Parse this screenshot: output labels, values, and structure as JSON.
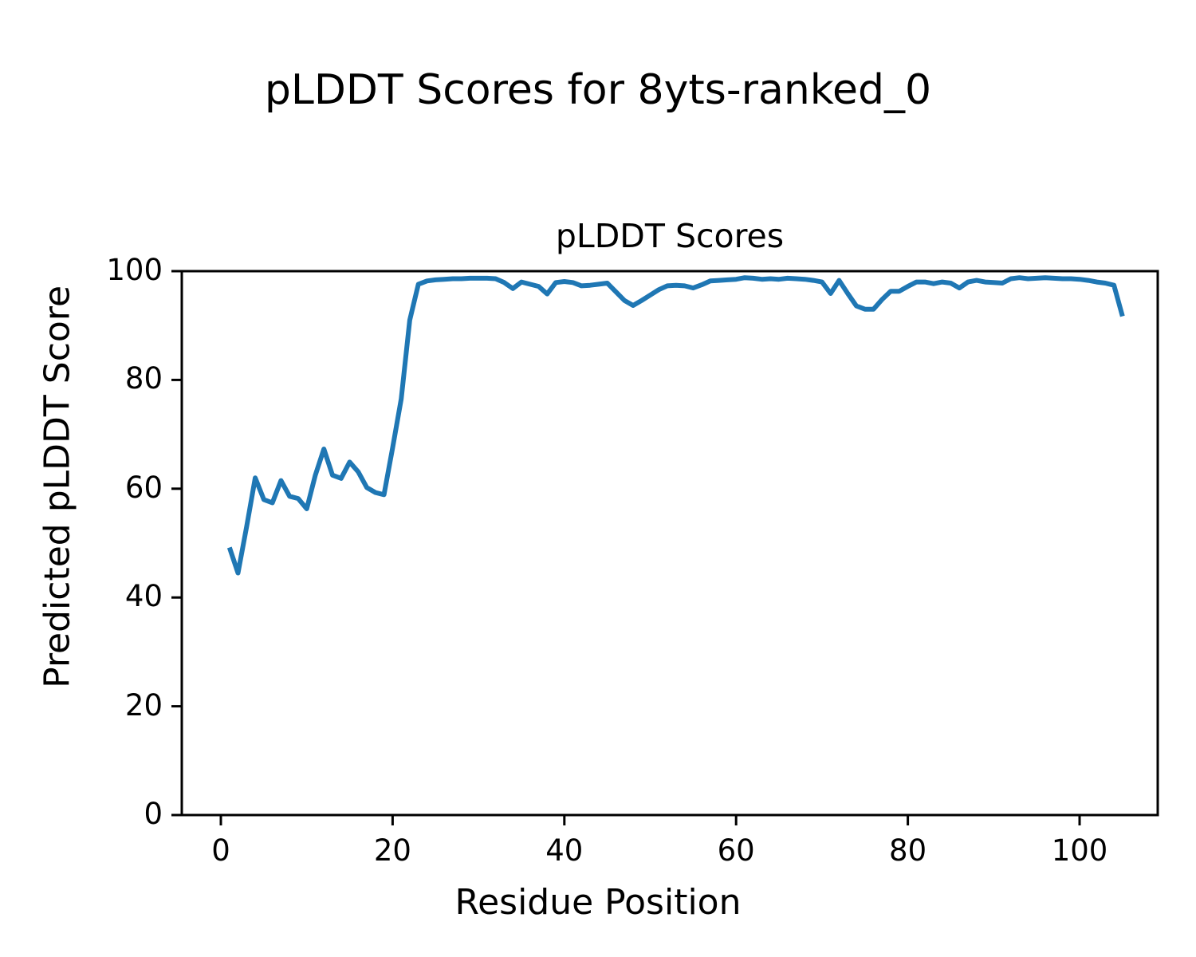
{
  "figure": {
    "suptitle": "pLDDT Scores for 8yts-ranked_0"
  },
  "chart_data": {
    "type": "line",
    "title": "pLDDT Scores",
    "suptitle": "pLDDT Scores for 8yts-ranked_0",
    "xlabel": "Residue Position",
    "ylabel": "Predicted pLDDT Score",
    "grid": false,
    "legend": null,
    "background_color": "#ffffff",
    "text_color": "#000000",
    "spine_color": "#000000",
    "xlim": [
      -4.55,
      109.1
    ],
    "ylim": [
      0,
      100
    ],
    "xtick_values": [
      0,
      20,
      40,
      60,
      80,
      100
    ],
    "xtick_labels": [
      "0",
      "20",
      "40",
      "60",
      "80",
      "100"
    ],
    "ytick_values": [
      0,
      20,
      40,
      60,
      80,
      100
    ],
    "ytick_labels": [
      "0",
      "20",
      "40",
      "60",
      "80",
      "100"
    ],
    "x": [
      1,
      2,
      3,
      4,
      5,
      6,
      7,
      8,
      9,
      10,
      11,
      12,
      13,
      14,
      15,
      16,
      17,
      18,
      19,
      20,
      21,
      22,
      23,
      24,
      25,
      26,
      27,
      28,
      29,
      30,
      31,
      32,
      33,
      34,
      35,
      36,
      37,
      38,
      39,
      40,
      41,
      42,
      43,
      44,
      45,
      46,
      47,
      48,
      49,
      50,
      51,
      52,
      53,
      54,
      55,
      56,
      57,
      58,
      59,
      60,
      61,
      62,
      63,
      64,
      65,
      66,
      67,
      68,
      69,
      70,
      71,
      72,
      73,
      74,
      75,
      76,
      77,
      78,
      79,
      80,
      81,
      82,
      83,
      84,
      85,
      86,
      87,
      88,
      89,
      90,
      91,
      92,
      93,
      94,
      95,
      96,
      97,
      98,
      99,
      100,
      101,
      102,
      103,
      104,
      105
    ],
    "series": [
      {
        "name": "pLDDT",
        "color": "#1f77b4",
        "line_width": 6,
        "values": [
          49.2,
          44.5,
          53,
          62,
          58,
          57.4,
          61.5,
          58.6,
          58.2,
          56.3,
          62.5,
          67.3,
          62.5,
          61.9,
          64.9,
          63.1,
          60.2,
          59.3,
          58.9,
          67.5,
          76.5,
          91,
          97.6,
          98.2,
          98.4,
          98.5,
          98.6,
          98.6,
          98.7,
          98.7,
          98.7,
          98.6,
          97.9,
          96.8,
          98,
          97.6,
          97.2,
          95.8,
          97.9,
          98.1,
          97.9,
          97.3,
          97.4,
          97.6,
          97.8,
          96.2,
          94.6,
          93.7,
          94.6,
          95.6,
          96.6,
          97.3,
          97.4,
          97.3,
          96.9,
          97.5,
          98.2,
          98.3,
          98.4,
          98.5,
          98.8,
          98.7,
          98.5,
          98.6,
          98.5,
          98.7,
          98.6,
          98.5,
          98.3,
          98,
          95.9,
          98.3,
          95.9,
          93.6,
          93,
          93,
          94.8,
          96.3,
          96.3,
          97.2,
          98,
          98,
          97.7,
          98,
          97.8,
          96.9,
          98,
          98.3,
          98,
          97.9,
          97.8,
          98.6,
          98.8,
          98.6,
          98.7,
          98.8,
          98.7,
          98.6,
          98.6,
          98.5,
          98.3,
          98,
          97.8,
          97.4,
          91.7
        ]
      }
    ]
  }
}
